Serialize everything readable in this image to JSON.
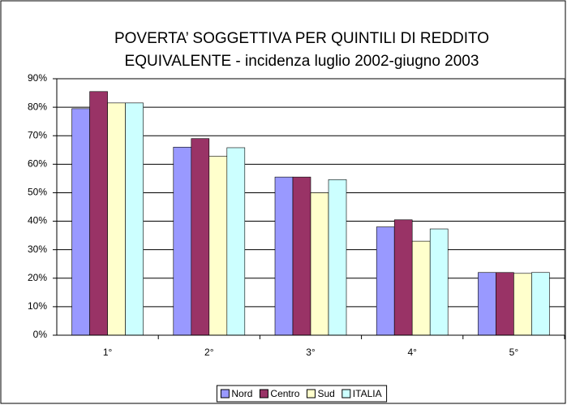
{
  "chart_data": {
    "type": "bar",
    "title": [
      "POVERTA’ SOGGETTIVA PER QUINTILI DI REDDITO",
      "EQUIVALENTE - incidenza luglio 2002-giugno 2003"
    ],
    "categories": [
      "1°",
      "2°",
      "3°",
      "4°",
      "5°"
    ],
    "series": [
      {
        "name": "Nord",
        "color": "#9999ff",
        "values": [
          79.5,
          66,
          55.5,
          38,
          22
        ]
      },
      {
        "name": "Centro",
        "color": "#993366",
        "values": [
          85.5,
          69,
          55.5,
          40.5,
          22
        ]
      },
      {
        "name": "Sud",
        "color": "#ffffcc",
        "values": [
          81.5,
          62.8,
          50,
          33,
          21.7
        ]
      },
      {
        "name": "ITALIA",
        "color": "#ccffff",
        "values": [
          81.5,
          65.8,
          54.6,
          37.3,
          22
        ]
      }
    ],
    "ylim": [
      0,
      90
    ],
    "yticks": [
      {
        "value": 0,
        "label": "0%"
      },
      {
        "value": 10,
        "label": "10%"
      },
      {
        "value": 20,
        "label": "20%"
      },
      {
        "value": 30,
        "label": "30%"
      },
      {
        "value": 40,
        "label": "40%"
      },
      {
        "value": 50,
        "label": "50%"
      },
      {
        "value": 60,
        "label": "60%"
      },
      {
        "value": 70,
        "label": "70%"
      },
      {
        "value": 80,
        "label": "80%"
      },
      {
        "value": 90,
        "label": "90%"
      }
    ],
    "grid": true,
    "legend": "bottom"
  }
}
